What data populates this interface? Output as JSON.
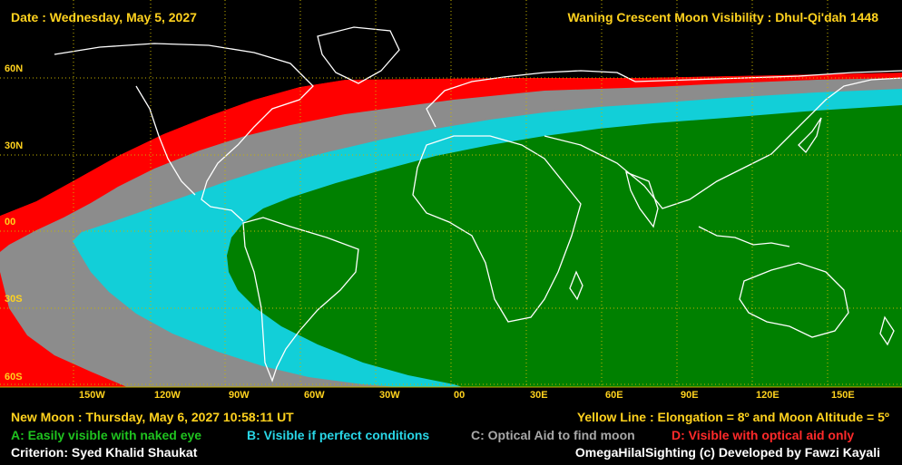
{
  "header": {
    "date": "Date : Wednesday, May 5, 2027",
    "title": "Waning Crescent Moon Visibility : Dhul-Qi'dah 1448"
  },
  "map": {
    "lat_labels": [
      "60N",
      "30N",
      "00",
      "30S",
      "60S"
    ],
    "lon_labels": [
      "150W",
      "120W",
      "90W",
      "60W",
      "30W",
      "00",
      "30E",
      "60E",
      "90E",
      "120E",
      "150E"
    ],
    "colors": {
      "naked_eye": "#008000",
      "perfect": "#12cfd8",
      "optical_find": "#8c8c8c",
      "optical_only": "#ff0000",
      "not_visible": "#000000",
      "grid": "#c8b400"
    }
  },
  "footer": {
    "new_moon": "New Moon : Thursday, May 6, 2027  10:58:11  UT",
    "yellow_line": "Yellow Line : Elongation = 8º  and Moon Altitude = 5º",
    "legend": {
      "a": "A: Easily visible with naked eye",
      "b": "B: Visible if perfect conditions",
      "c": "C: Optical Aid to find moon",
      "d": "D: Visible with optical aid only"
    },
    "criterion": "Criterion: Syed Khalid Shaukat",
    "credit": "OmegaHilalSighting  (c)  Developed by Fawzi Kayali"
  }
}
